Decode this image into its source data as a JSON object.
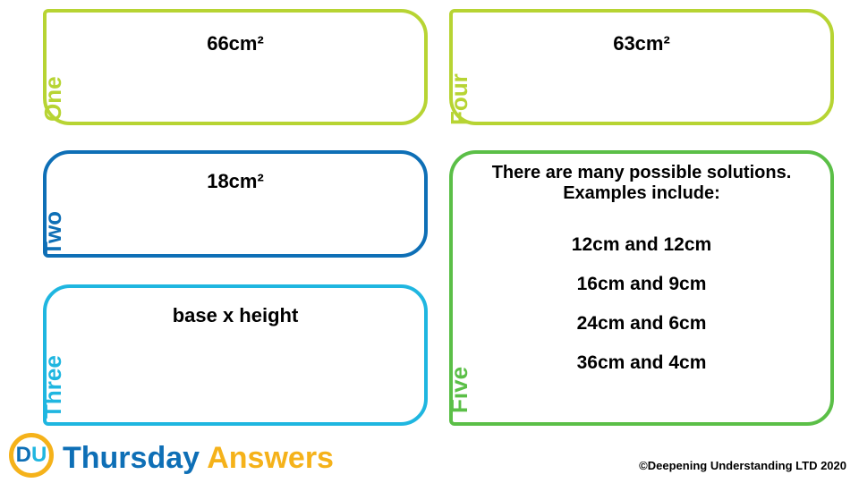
{
  "colors": {
    "one": "#b7d433",
    "two": "#0e6fb6",
    "three": "#1fb6e0",
    "four": "#b7d433",
    "five": "#5bbf47",
    "logo_ring": "#f5b21a",
    "logo_d": "#0e6fb6",
    "logo_u": "#1fb6e0",
    "day_color": "#0e6fb6",
    "answers_color": "#f5b21a"
  },
  "tabs": {
    "one": "One",
    "two": "Two",
    "three": "Three",
    "four": "Four",
    "five": "Five"
  },
  "answers": {
    "one": "66cm²",
    "two": "18cm²",
    "three": "base x height",
    "four": "63cm²",
    "five_intro": "There are many possible solutions. Examples include:",
    "five_items": {
      "a": "12cm and 12cm",
      "b": "16cm and 9cm",
      "c": "24cm and 6cm",
      "d": "36cm and 4cm"
    }
  },
  "footer": {
    "logo_d": "D",
    "logo_u": "U",
    "day": "Thursday",
    "answers_label": "Answers",
    "copyright": "©Deepening Understanding LTD 2020"
  }
}
